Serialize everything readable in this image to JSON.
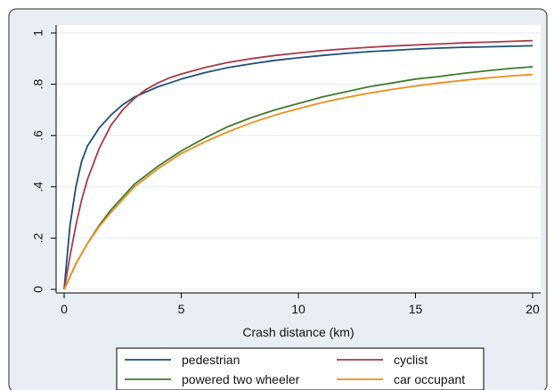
{
  "colors": {
    "outer_bg": "#e8eef4",
    "plot_bg": "#ffffff",
    "grid": "#e4eaf0",
    "axis": "#000000"
  },
  "chart_data": {
    "type": "line",
    "title": "",
    "xlabel": "Crash distance (km)",
    "ylabel": "",
    "xlim": [
      0,
      20
    ],
    "ylim": [
      0,
      1
    ],
    "xticks": [
      0,
      5,
      10,
      15,
      20
    ],
    "yticks": [
      0,
      0.2,
      0.4,
      0.6,
      0.8,
      1
    ],
    "xtick_labels": [
      "0",
      "5",
      "10",
      "15",
      "20"
    ],
    "ytick_labels": [
      "0",
      ".2",
      ".4",
      ".6",
      ".8",
      "1"
    ],
    "grid": true,
    "legend_position": "bottom",
    "series": [
      {
        "name": "pedestrian",
        "color": "#1f4e79",
        "x": [
          0,
          0.1,
          0.25,
          0.5,
          0.75,
          1,
          1.5,
          2,
          2.5,
          3,
          3.5,
          4,
          4.5,
          5,
          6,
          7,
          8,
          9,
          10,
          11,
          12,
          13,
          14,
          15,
          16,
          17,
          18,
          19,
          20
        ],
        "y": [
          0,
          0.1,
          0.25,
          0.4,
          0.5,
          0.56,
          0.63,
          0.68,
          0.72,
          0.75,
          0.77,
          0.79,
          0.805,
          0.82,
          0.845,
          0.865,
          0.88,
          0.893,
          0.903,
          0.912,
          0.92,
          0.927,
          0.932,
          0.937,
          0.941,
          0.944,
          0.946,
          0.948,
          0.95
        ]
      },
      {
        "name": "cyclist",
        "color": "#a83a48",
        "x": [
          0,
          0.1,
          0.25,
          0.5,
          0.75,
          1,
          1.5,
          2,
          2.5,
          3,
          3.5,
          4,
          4.5,
          5,
          6,
          7,
          8,
          9,
          10,
          11,
          12,
          13,
          14,
          15,
          16,
          17,
          18,
          19,
          20
        ],
        "y": [
          0,
          0.05,
          0.13,
          0.25,
          0.35,
          0.43,
          0.55,
          0.64,
          0.7,
          0.745,
          0.78,
          0.805,
          0.825,
          0.84,
          0.865,
          0.885,
          0.9,
          0.912,
          0.922,
          0.931,
          0.938,
          0.944,
          0.949,
          0.953,
          0.957,
          0.961,
          0.964,
          0.967,
          0.97
        ]
      },
      {
        "name": "powered two wheeler",
        "color": "#3f7a2e",
        "x": [
          0,
          0.5,
          1,
          1.5,
          2,
          3,
          4,
          5,
          6,
          7,
          8,
          9,
          10,
          11,
          12,
          13,
          14,
          15,
          16,
          17,
          18,
          19,
          20
        ],
        "y": [
          0,
          0.1,
          0.18,
          0.25,
          0.31,
          0.41,
          0.48,
          0.54,
          0.59,
          0.635,
          0.67,
          0.7,
          0.725,
          0.75,
          0.77,
          0.79,
          0.805,
          0.82,
          0.83,
          0.842,
          0.852,
          0.861,
          0.868
        ]
      },
      {
        "name": "car occupant",
        "color": "#f08c1a",
        "x": [
          0,
          0.5,
          1,
          1.5,
          2,
          3,
          4,
          5,
          6,
          7,
          8,
          9,
          10,
          11,
          12,
          13,
          14,
          15,
          16,
          17,
          18,
          19,
          20
        ],
        "y": [
          0,
          0.1,
          0.18,
          0.245,
          0.3,
          0.4,
          0.47,
          0.53,
          0.575,
          0.615,
          0.65,
          0.68,
          0.705,
          0.728,
          0.748,
          0.765,
          0.78,
          0.793,
          0.805,
          0.815,
          0.824,
          0.832,
          0.838
        ]
      }
    ]
  }
}
